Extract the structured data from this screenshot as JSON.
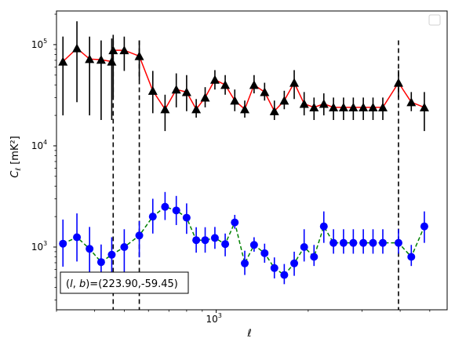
{
  "chart_data": {
    "type": "scatter",
    "xlabel": "ℓ",
    "ylabel_main": "C",
    "ylabel_sub": "ℓ",
    "ylabel_unit": "[mK²]",
    "x_scale": "log",
    "y_scale": "log",
    "xlim": [
      300,
      5700
    ],
    "ylim": [
      240,
      215000
    ],
    "x_major_ticks": [
      {
        "value": 1000,
        "base": "10",
        "exp": "3"
      }
    ],
    "y_major_ticks": [
      {
        "value": 1000,
        "base": "10",
        "exp": "3"
      },
      {
        "value": 10000,
        "base": "10",
        "exp": "4"
      },
      {
        "value": 100000,
        "base": "10",
        "exp": "5"
      }
    ],
    "grid": false,
    "legend": {
      "placement": "top-right",
      "entries": []
    },
    "annotation": "(l, b)=(223.90,-59.45)",
    "annotation_parts": {
      "prefix": "(",
      "l": "l",
      "sep": ", ",
      "b": "b",
      "suffix": ")=(223.90,-59.45)"
    },
    "vlines": [
      {
        "x": 460,
        "ymin": 240,
        "ymax": 110000,
        "color": "#000000",
        "style": "dashed"
      },
      {
        "x": 560,
        "ymin": 240,
        "ymax": 110000,
        "color": "#000000",
        "style": "dashed"
      },
      {
        "x": 3950,
        "ymin": 240,
        "ymax": 110000,
        "color": "#000000",
        "style": "dashed"
      }
    ],
    "series": [
      {
        "marker": "triangle",
        "marker_color": "#000000",
        "line_color": "#ff0000",
        "line_style": "solid",
        "error_color": "#000000",
        "x": [
          315,
          350,
          385,
          420,
          455,
          460,
          500,
          560,
          620,
          680,
          740,
          800,
          860,
          920,
          990,
          1070,
          1150,
          1240,
          1330,
          1440,
          1550,
          1670,
          1800,
          1940,
          2090,
          2250,
          2420,
          2610,
          2810,
          3030,
          3260,
          3510,
          3950,
          4350,
          4800
        ],
        "y": [
          68000,
          92000,
          72000,
          71000,
          68000,
          88000,
          88000,
          77000,
          35000,
          23000,
          36000,
          34000,
          23000,
          30000,
          45000,
          40000,
          28000,
          23000,
          40000,
          34000,
          22000,
          28000,
          42000,
          26000,
          24000,
          26000,
          24000,
          24000,
          24000,
          24000,
          24000,
          24000,
          42000,
          27000,
          24000
        ],
        "yerr_low": [
          20000,
          27000,
          20000,
          18000,
          18000,
          30000,
          55000,
          45000,
          21000,
          14000,
          24000,
          22000,
          19000,
          24000,
          36000,
          32000,
          22000,
          19000,
          33000,
          28000,
          18000,
          23000,
          29000,
          20000,
          18000,
          20000,
          18000,
          18000,
          18000,
          18000,
          18000,
          18000,
          30000,
          22000,
          14000
        ],
        "yerr_high": [
          120000,
          170000,
          120000,
          110000,
          115000,
          125000,
          120000,
          110000,
          55000,
          32000,
          52000,
          50000,
          29000,
          38000,
          56000,
          50000,
          36000,
          28000,
          50000,
          42000,
          28000,
          35000,
          56000,
          34000,
          30000,
          33000,
          30000,
          30000,
          30000,
          30000,
          30000,
          30000,
          56000,
          34000,
          34000
        ]
      },
      {
        "marker": "circle",
        "marker_color": "#0000ff",
        "line_color": "#008000",
        "line_style": "dashed",
        "error_color": "#0000ff",
        "x": [
          315,
          350,
          385,
          420,
          455,
          500,
          560,
          620,
          680,
          740,
          800,
          860,
          920,
          990,
          1070,
          1150,
          1240,
          1330,
          1440,
          1550,
          1670,
          1800,
          1940,
          2090,
          2250,
          2420,
          2610,
          2810,
          3030,
          3260,
          3510,
          3950,
          4350,
          4800
        ],
        "y": [
          1080,
          1250,
          960,
          710,
          840,
          1000,
          1300,
          2000,
          2500,
          2300,
          1950,
          1170,
          1170,
          1230,
          1070,
          1750,
          690,
          1050,
          870,
          620,
          530,
          690,
          1000,
          800,
          1600,
          1100,
          1100,
          1100,
          1100,
          1100,
          1100,
          1100,
          800,
          1600
        ],
        "yerr_low": [
          640,
          720,
          560,
          430,
          500,
          560,
          790,
          1360,
          1850,
          1650,
          1350,
          880,
          880,
          960,
          810,
          1520,
          530,
          900,
          700,
          490,
          430,
          520,
          720,
          650,
          1100,
          860,
          860,
          860,
          860,
          860,
          860,
          860,
          650,
          1100
        ],
        "yerr_high": [
          1870,
          2150,
          1580,
          1060,
          1250,
          1500,
          1800,
          3000,
          3500,
          3200,
          2700,
          1570,
          1570,
          1580,
          1360,
          2080,
          920,
          1250,
          1080,
          790,
          680,
          900,
          1500,
          1050,
          2250,
          1500,
          1500,
          1500,
          1500,
          1500,
          1500,
          1500,
          1050,
          2250
        ]
      }
    ]
  }
}
